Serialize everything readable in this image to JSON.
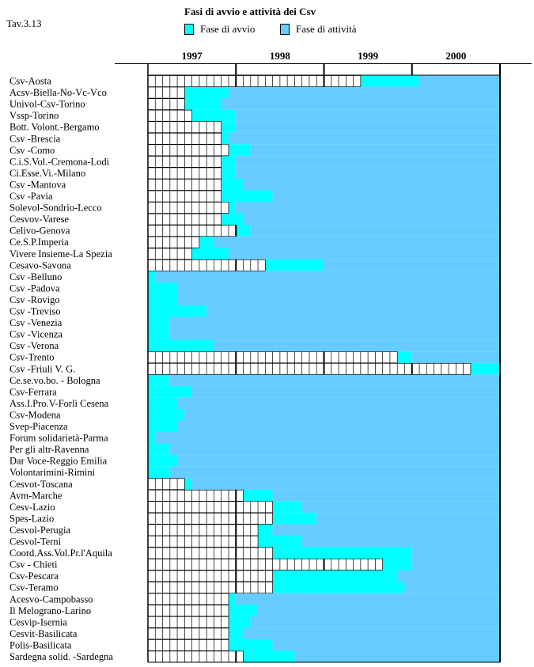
{
  "tav": "Tav.3.13",
  "chart_data": {
    "type": "bar",
    "title": "Fasi di avvio e attività dei Csv",
    "legend": [
      {
        "name": "Fase di avvio",
        "color": "#00ffff"
      },
      {
        "name": "Fase di attività",
        "color": "#66ccff"
      }
    ],
    "years": [
      "1997",
      "1998",
      "1999",
      "2000"
    ],
    "x_unit": "months from Jan 1997",
    "xlim": [
      0,
      48
    ],
    "rows": [
      {
        "name": "Csv-Aosta",
        "start": 29,
        "active": 37
      },
      {
        "name": "Acsv-Biella-No-Vc-Vco",
        "start": 5,
        "active": 11
      },
      {
        "name": "Univol-Csv-Torino",
        "start": 5,
        "active": 10
      },
      {
        "name": "Vssp-Torino",
        "start": 6,
        "active": 12
      },
      {
        "name": "Bott. Volont.-Bergamo",
        "start": 10,
        "active": 12
      },
      {
        "name": "Csv -Brescia",
        "start": 10,
        "active": 11
      },
      {
        "name": "Csv -Como",
        "start": 11,
        "active": 14
      },
      {
        "name": "C.i.S.Vol.-Cremona-Lodi",
        "start": 10,
        "active": 12
      },
      {
        "name": "Ci.Esse.Vi.-Milano",
        "start": 10,
        "active": 12
      },
      {
        "name": "Csv -Mantova",
        "start": 10,
        "active": 13
      },
      {
        "name": "Csv  -Pavia",
        "start": 10,
        "active": 17
      },
      {
        "name": "Solevol-Sondrio-Lecco",
        "start": 11,
        "active": 12
      },
      {
        "name": "Cesvov-Varese",
        "start": 10,
        "active": 13
      },
      {
        "name": "Celivo-Genova",
        "start": 12,
        "active": 14
      },
      {
        "name": "Ce.S.P.Imperia",
        "start": 7,
        "active": 9
      },
      {
        "name": "Vivere Insieme-La Spezia",
        "start": 6,
        "active": 11
      },
      {
        "name": "Cesavo-Savona",
        "start": 16,
        "active": 24
      },
      {
        "name": "Csv -Belluno",
        "start": 0,
        "active": 1
      },
      {
        "name": "Csv -Padova",
        "start": 0,
        "active": 4
      },
      {
        "name": "Csv -Rovigo",
        "start": 0,
        "active": 4
      },
      {
        "name": "Csv  -Treviso",
        "start": 0,
        "active": 8
      },
      {
        "name": "Csv  -Venezia",
        "start": 0,
        "active": 3
      },
      {
        "name": "Csv -Vicenza",
        "start": 0,
        "active": 3
      },
      {
        "name": "Csv -Verona",
        "start": 0,
        "active": 9
      },
      {
        "name": "Csv-Trento",
        "start": 34,
        "active": 36
      },
      {
        "name": "Csv -Friuli V. G.",
        "start": 44,
        "active": null
      },
      {
        "name": "Ce.se.vo.bo. - Bologna",
        "start": 0,
        "active": 3
      },
      {
        "name": "Csv-Ferrara",
        "start": 0,
        "active": 6
      },
      {
        "name": "Ass.I.Pro.V-Forlì Cesena",
        "start": 0,
        "active": 4
      },
      {
        "name": "Csv-Modena",
        "start": 0,
        "active": 5
      },
      {
        "name": "Svep-Piacenza",
        "start": 0,
        "active": 4
      },
      {
        "name": "Forum solidarietà-Parma",
        "start": 0,
        "active": 1
      },
      {
        "name": "Per gli altr-Ravenna",
        "start": 0,
        "active": 3
      },
      {
        "name": "Dar Voce-Reggio Emilia",
        "start": 0,
        "active": 4
      },
      {
        "name": "Volontarimini-Rimini",
        "start": 0,
        "active": 3
      },
      {
        "name": "Cesvot-Toscana",
        "start": 5,
        "active": 6
      },
      {
        "name": "Avm-Marche",
        "start": 13,
        "active": 17
      },
      {
        "name": "Cesv-Lazio",
        "start": 17,
        "active": 21
      },
      {
        "name": "Spes-Lazio",
        "start": 17,
        "active": 23
      },
      {
        "name": "Cesvol-Perugia",
        "start": 15,
        "active": 17
      },
      {
        "name": "Cesvol-Terni",
        "start": 15,
        "active": 21
      },
      {
        "name": "Coord.Ass.Vol.Pr.l'Aquila",
        "start": 17,
        "active": 36
      },
      {
        "name": "Csv - Chieti",
        "start": 32,
        "active": 36
      },
      {
        "name": "Csv-Pescara",
        "start": 17,
        "active": 34
      },
      {
        "name": "Csv-Teramo",
        "start": 17,
        "active": 35
      },
      {
        "name": "Acesvo-Campobasso",
        "start": 11,
        "active": 12
      },
      {
        "name": "Il Melograno-Larino",
        "start": 11,
        "active": 15
      },
      {
        "name": "Cesvip-Isernia",
        "start": 11,
        "active": 14
      },
      {
        "name": "Cesvit-Basilicata",
        "start": 11,
        "active": 13
      },
      {
        "name": "Polis-Basilicata",
        "start": 11,
        "active": 17
      },
      {
        "name": "Sardegna solid. -Sardegna",
        "start": 13,
        "active": 20
      }
    ]
  }
}
